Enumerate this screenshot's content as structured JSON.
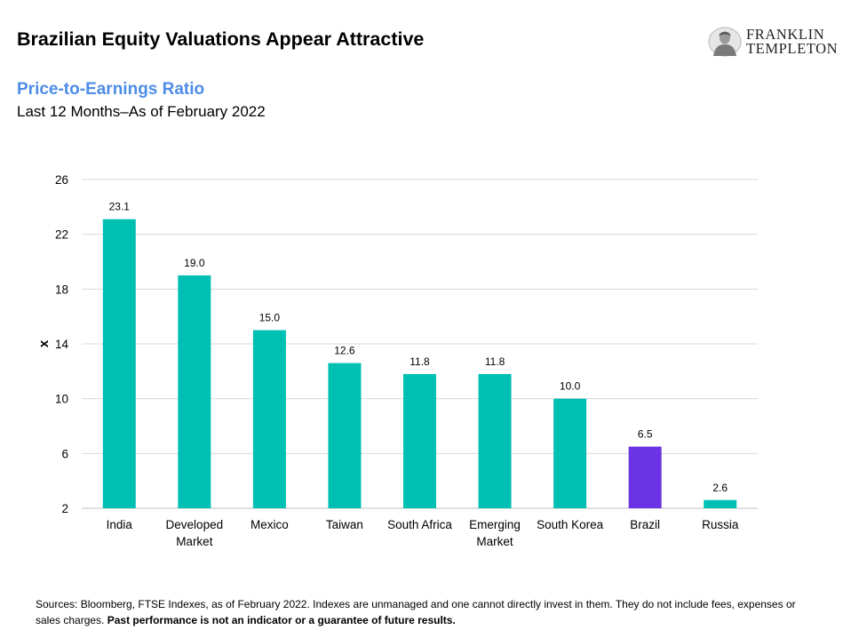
{
  "header": {
    "title": "Brazilian Equity Valuations Appear Attractive",
    "logo_line1": "FRANKLIN",
    "logo_line2": "TEMPLETON",
    "logo_icon": "portrait-seal-icon"
  },
  "chart_data": {
    "type": "bar",
    "title": "Price-to-Earnings Ratio",
    "subtitle": "Last 12 Months–As of February 2022",
    "ylabel": "x",
    "xlabel": "",
    "ylim": [
      2,
      26
    ],
    "yticks": [
      2,
      6,
      10,
      14,
      18,
      22,
      26
    ],
    "grid": true,
    "categories": [
      [
        "India"
      ],
      [
        "Developed",
        "Market"
      ],
      [
        "Mexico"
      ],
      [
        "Taiwan"
      ],
      [
        "South Africa"
      ],
      [
        "Emerging",
        "Market"
      ],
      [
        "South Korea"
      ],
      [
        "Brazil"
      ],
      [
        "Russia"
      ]
    ],
    "values": [
      23.1,
      19.0,
      15.0,
      12.6,
      11.8,
      11.8,
      10.0,
      6.5,
      2.6
    ],
    "data_labels": [
      "23.1",
      "19.0",
      "15.0",
      "12.6",
      "11.8",
      "11.8",
      "10.0",
      "6.5",
      "2.6"
    ],
    "colors": [
      "#00bfb3",
      "#00bfb3",
      "#00bfb3",
      "#00bfb3",
      "#00bfb3",
      "#00bfb3",
      "#00bfb3",
      "#6b33e3",
      "#00bfb3"
    ],
    "highlight": "Brazil",
    "gridline_color": "#d9d9d9"
  },
  "footer": {
    "sources": "Sources: Bloomberg, FTSE Indexes, as of February 2022. Indexes are unmanaged and one cannot directly invest in them. They do not include fees, expenses or sales charges.",
    "disclaimer": "Past performance is not an indicator or a guarantee of future results."
  }
}
